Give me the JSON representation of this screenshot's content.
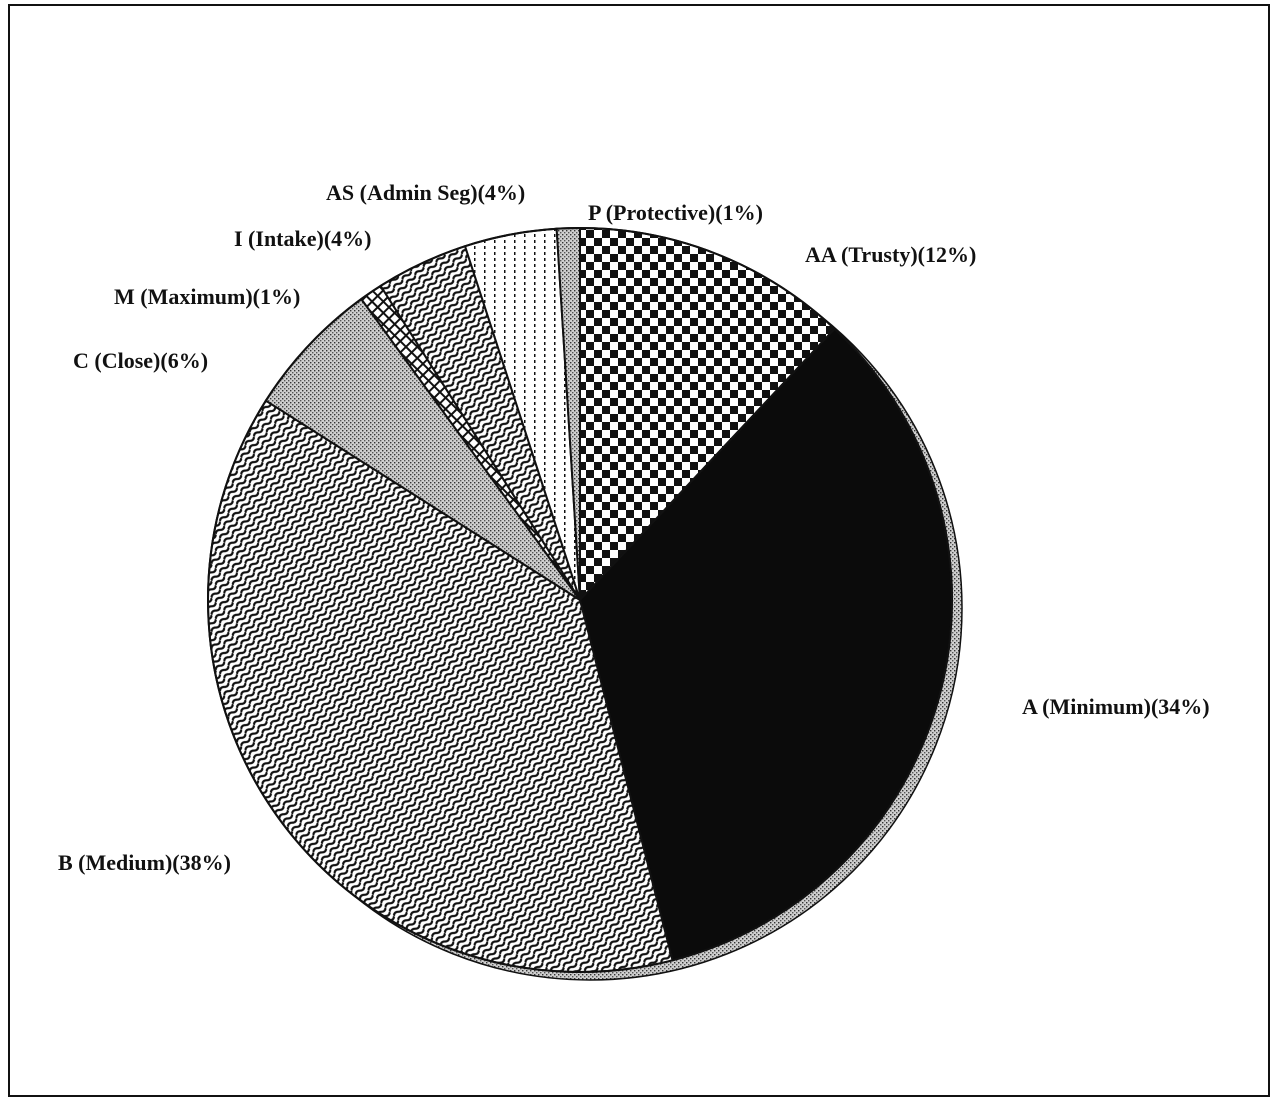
{
  "chart_data": {
    "type": "pie",
    "title": "",
    "start_angle_deg": 0,
    "direction": "clockwise",
    "slices": [
      {
        "label": "AA (Trusty)(12%)",
        "short": "AA",
        "name": "Trusty",
        "value": 12,
        "pattern": "checker"
      },
      {
        "label": "A (Minimum)(34%)",
        "short": "A",
        "name": "Minimum",
        "value": 34,
        "pattern": "solid-black"
      },
      {
        "label": "B (Medium)(38%)",
        "short": "B",
        "name": "Medium",
        "value": 38,
        "pattern": "diagonal-wave"
      },
      {
        "label": "C (Close)(6%)",
        "short": "C",
        "name": "Close",
        "value": 6,
        "pattern": "stipple-gray"
      },
      {
        "label": "M (Maximum)(1%)",
        "short": "M",
        "name": "Maximum",
        "value": 1,
        "pattern": "crosshatch"
      },
      {
        "label": "I (Intake)(4%)",
        "short": "I",
        "name": "Intake",
        "value": 4,
        "pattern": "diagonal-wave"
      },
      {
        "label": "AS (Admin Seg)(4%)",
        "short": "AS",
        "name": "Admin Seg",
        "value": 4,
        "pattern": "vertical-lines"
      },
      {
        "label": "P (Protective)(1%)",
        "short": "P",
        "name": "Protective",
        "value": 1,
        "pattern": "stipple-gray"
      }
    ],
    "colors": {
      "ink": "#111111",
      "shadow": "#9a9a9a",
      "background": "#ffffff"
    }
  }
}
